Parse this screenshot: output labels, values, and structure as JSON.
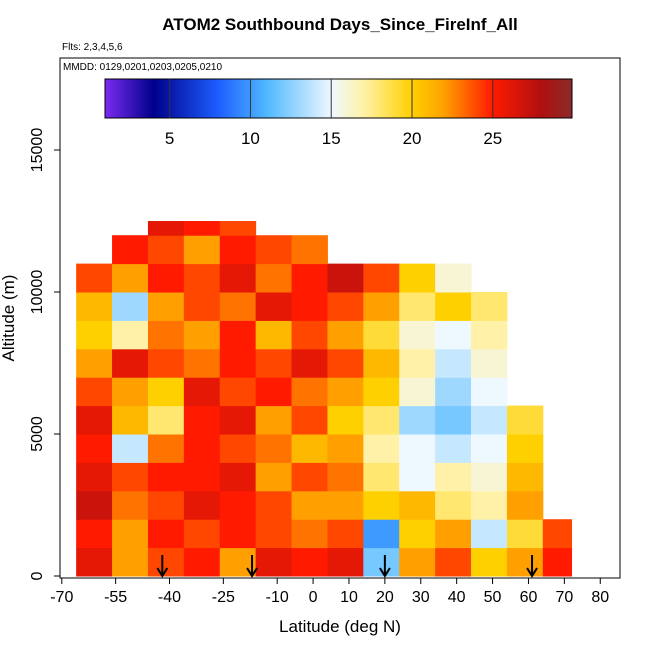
{
  "chart_data": {
    "type": "heatmap",
    "title": "ATOM2 Southbound Days_Since_FireInf_All",
    "subtitle": "Flts: 2,3,4,5,6",
    "annotation": "MMDD: 0129,0201,0203,0205,0210",
    "x_label": "Latitude (deg N)",
    "y_label": "Altitude (m)",
    "xlim": [
      -70.5,
      85.5
    ],
    "ylim": [
      -70,
      18240
    ],
    "xticks": [
      -70,
      -55,
      -40,
      -25,
      -10,
      0,
      10,
      20,
      30,
      40,
      50,
      60,
      70,
      80
    ],
    "yticks": [
      0,
      5000,
      10000,
      15000
    ],
    "x_edges": [
      -66,
      -56,
      -46,
      -36,
      -26,
      -16,
      -6,
      4,
      14,
      24,
      34,
      44,
      54,
      64,
      72
    ],
    "y_edges": [
      0,
      1000,
      2000,
      3000,
      4000,
      5000,
      6000,
      7000,
      8000,
      9000,
      10000,
      11000,
      12000,
      12500
    ],
    "values": [
      [
        26,
        22,
        24,
        25,
        22,
        26,
        25,
        26,
        12,
        22,
        24,
        20,
        22,
        25
      ],
      [
        25,
        22,
        25,
        24,
        25,
        24,
        23,
        24,
        10,
        20,
        22,
        14,
        19,
        24
      ],
      [
        27,
        23,
        24,
        26,
        25,
        24,
        22,
        22,
        20,
        21,
        18,
        17,
        22,
        null
      ],
      [
        26,
        24,
        25,
        25,
        26,
        22,
        24,
        23,
        18,
        15,
        17,
        16,
        21,
        null
      ],
      [
        25,
        14,
        23,
        25,
        24,
        23,
        21,
        22,
        17,
        15,
        14,
        15,
        20,
        null
      ],
      [
        26,
        21,
        18,
        25,
        26,
        22,
        24,
        20,
        18,
        13,
        12,
        14,
        19,
        null
      ],
      [
        24,
        22,
        20,
        26,
        24,
        25,
        23,
        22,
        20,
        16,
        13,
        15,
        null,
        null
      ],
      [
        22,
        26,
        24,
        23,
        25,
        24,
        26,
        24,
        21,
        17,
        14,
        16,
        null,
        null
      ],
      [
        20,
        17,
        23,
        22,
        25,
        21,
        24,
        22,
        19,
        16,
        15,
        17,
        null,
        null
      ],
      [
        21,
        13,
        22,
        24,
        23,
        26,
        25,
        24,
        22,
        18,
        20,
        18,
        null,
        null
      ],
      [
        24,
        22,
        25,
        24,
        26,
        23,
        25,
        27,
        24,
        20,
        16,
        null,
        null,
        null
      ],
      [
        null,
        25,
        24,
        22,
        25,
        24,
        23,
        null,
        null,
        null,
        null,
        null,
        null,
        null
      ],
      [
        null,
        null,
        26,
        25,
        24,
        null,
        null,
        null,
        null,
        null,
        null,
        null,
        null,
        null
      ]
    ],
    "zlim": [
      1,
      29.9
    ],
    "colorbar_ticks": [
      5,
      10,
      15,
      20,
      25
    ],
    "colorscale": [
      [
        1,
        "#7b2cf0"
      ],
      [
        4,
        "#00008b"
      ],
      [
        8,
        "#1e5eff"
      ],
      [
        11,
        "#4fb8ff"
      ],
      [
        15,
        "#eef8ff"
      ],
      [
        17,
        "#fff2a8"
      ],
      [
        20,
        "#ffd000"
      ],
      [
        22,
        "#ffa000"
      ],
      [
        25,
        "#ff1a00"
      ],
      [
        28,
        "#b01010"
      ],
      [
        29.9,
        "#8b2a2a"
      ]
    ],
    "markers": [
      -42,
      -17,
      20,
      61
    ]
  }
}
